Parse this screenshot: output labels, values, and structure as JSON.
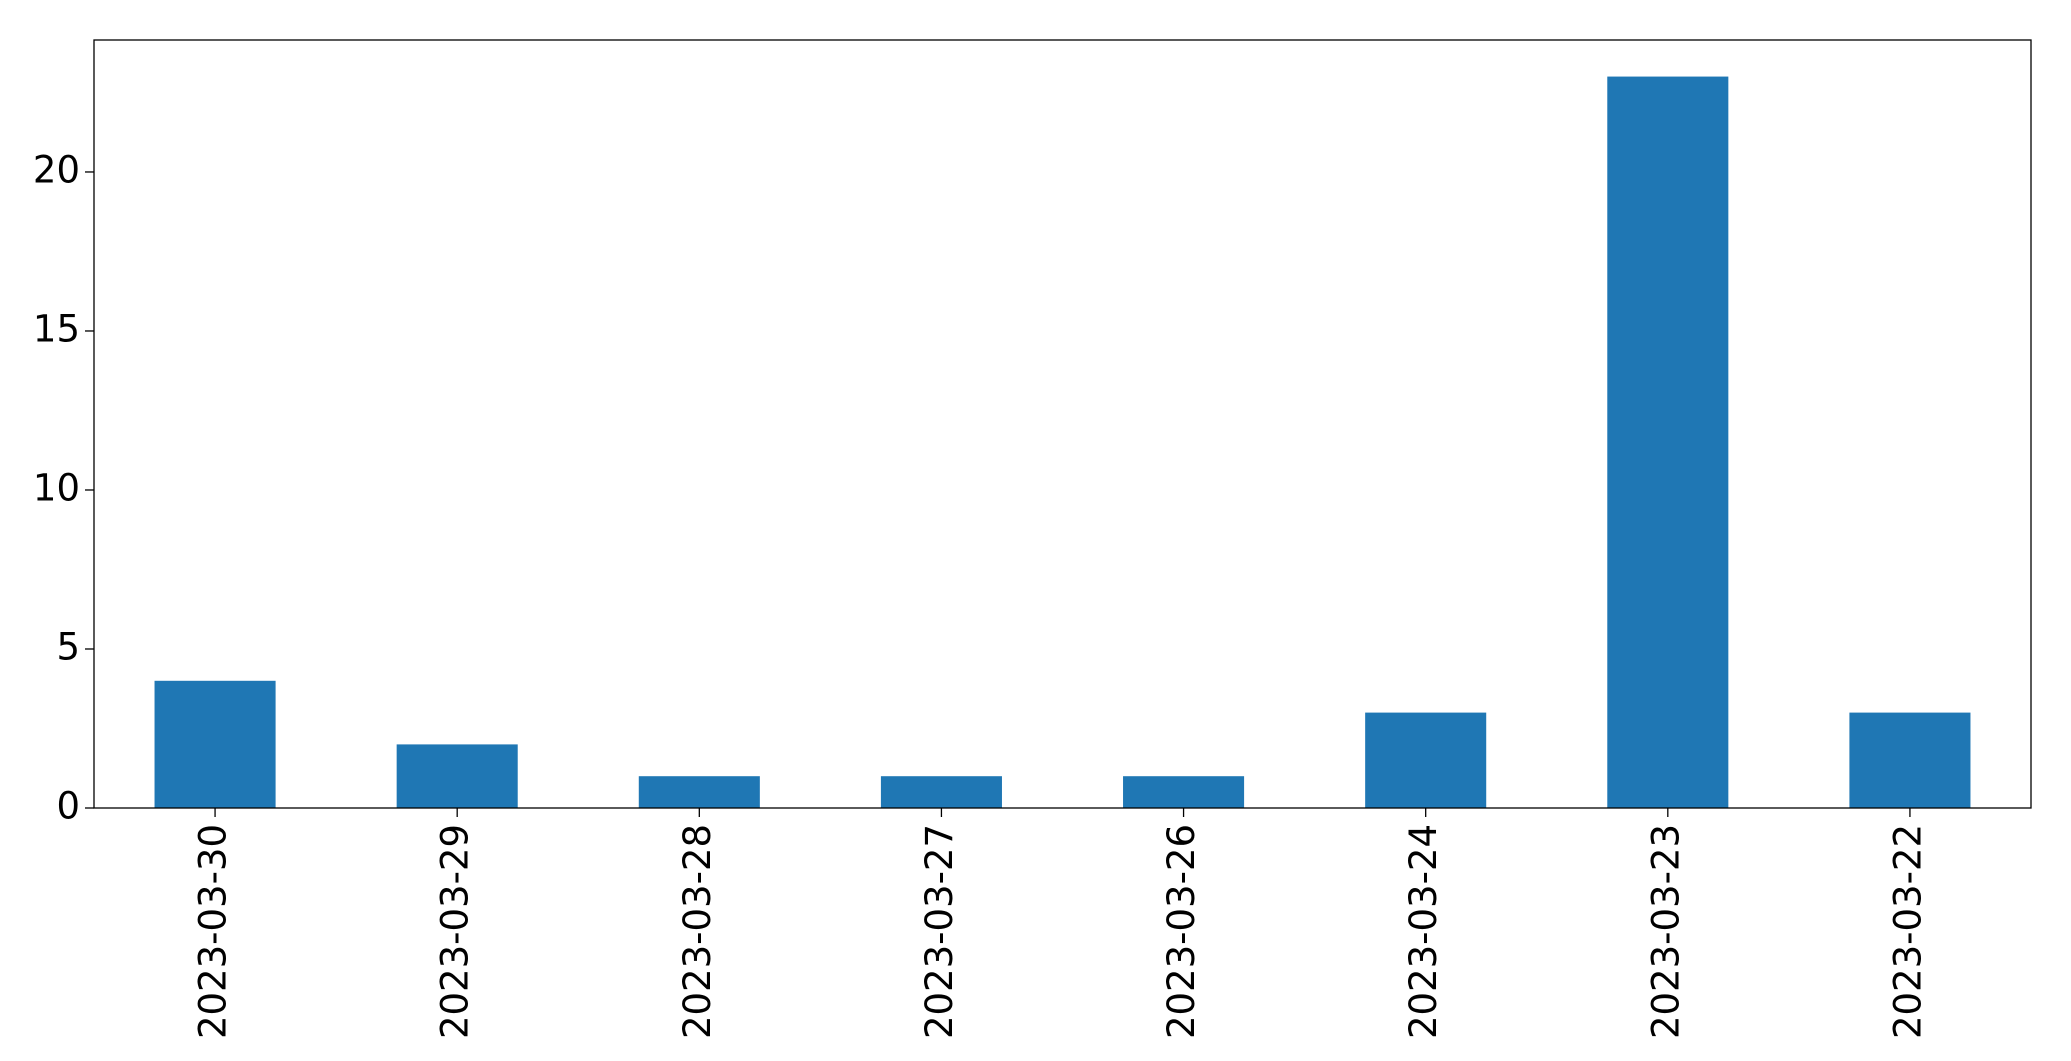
{
  "chart_data": {
    "type": "bar",
    "categories": [
      "2023-03-30",
      "2023-03-29",
      "2023-03-28",
      "2023-03-27",
      "2023-03-26",
      "2023-03-24",
      "2023-03-23",
      "2023-03-22"
    ],
    "values": [
      4,
      2,
      1,
      1,
      1,
      3,
      23,
      3
    ],
    "color": "#1f77b4",
    "ylim": [
      0,
      24.15
    ],
    "yticks": [
      0,
      5,
      10,
      15,
      20
    ],
    "grid": false
  }
}
